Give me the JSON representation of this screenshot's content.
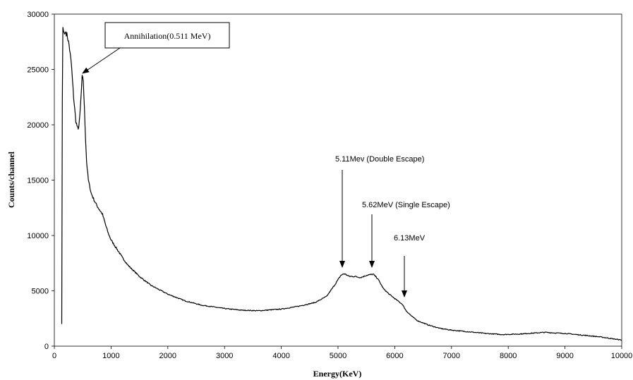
{
  "chart_data": {
    "type": "line",
    "title": "",
    "xlabel": "Energy(KeV)",
    "ylabel": "Counts/channel",
    "xlim": [
      0,
      10000
    ],
    "ylim": [
      0,
      30000
    ],
    "grid": false,
    "legend": "none",
    "x_ticks": [
      "0",
      "1000",
      "2000",
      "3000",
      "4000",
      "5000",
      "6000",
      "7000",
      "8000",
      "9000",
      "10000"
    ],
    "y_ticks": [
      "0",
      "5000",
      "10000",
      "15000",
      "20000",
      "25000",
      "30000"
    ],
    "line_color": "#000000",
    "series": [
      {
        "x": [
          130,
          140,
          150,
          160,
          180,
          200,
          230,
          260,
          300,
          340,
          380,
          420,
          450,
          470,
          490,
          510,
          530,
          550,
          570,
          600,
          650,
          700,
          750,
          800,
          850,
          900,
          950,
          1000,
          1100,
          1200,
          1300,
          1500,
          1700,
          2000,
          2300,
          2600,
          3000,
          3300,
          3600,
          4000,
          4300,
          4600,
          4800,
          4950,
          5050,
          5110,
          5200,
          5300,
          5400,
          5500,
          5620,
          5700,
          5800,
          5900,
          6000,
          6130,
          6200,
          6300,
          6400,
          6600,
          6800,
          7000,
          7300,
          7600,
          7900,
          8200,
          8500,
          8650,
          8800,
          9000,
          9200,
          9400,
          9600,
          9800,
          10000
        ],
        "y": [
          2000,
          22000,
          28800,
          28500,
          28200,
          28400,
          28000,
          27200,
          25500,
          22500,
          20300,
          19500,
          20800,
          22500,
          24300,
          24000,
          21500,
          18800,
          16600,
          15000,
          13800,
          13200,
          12700,
          12300,
          11900,
          11000,
          10200,
          9600,
          8800,
          8000,
          7300,
          6300,
          5500,
          4700,
          4100,
          3700,
          3400,
          3250,
          3200,
          3350,
          3600,
          3950,
          4500,
          5600,
          6400,
          6550,
          6300,
          6300,
          6200,
          6400,
          6500,
          6100,
          5200,
          4700,
          4300,
          3800,
          3200,
          2700,
          2300,
          1900,
          1600,
          1450,
          1300,
          1150,
          1050,
          1100,
          1200,
          1250,
          1200,
          1150,
          1050,
          950,
          850,
          700,
          550
        ]
      }
    ],
    "annotations": [
      {
        "text": "Annihilation(0.511 MeV)",
        "x": 511,
        "y": 24300
      },
      {
        "text": "5.11Mev (Double Escape)",
        "x": 5110,
        "y": 6550
      },
      {
        "text": "5.62MeV (Single Escape)",
        "x": 5620,
        "y": 6500
      },
      {
        "text": "6.13MeV",
        "x": 6200,
        "y": 4400
      }
    ]
  }
}
